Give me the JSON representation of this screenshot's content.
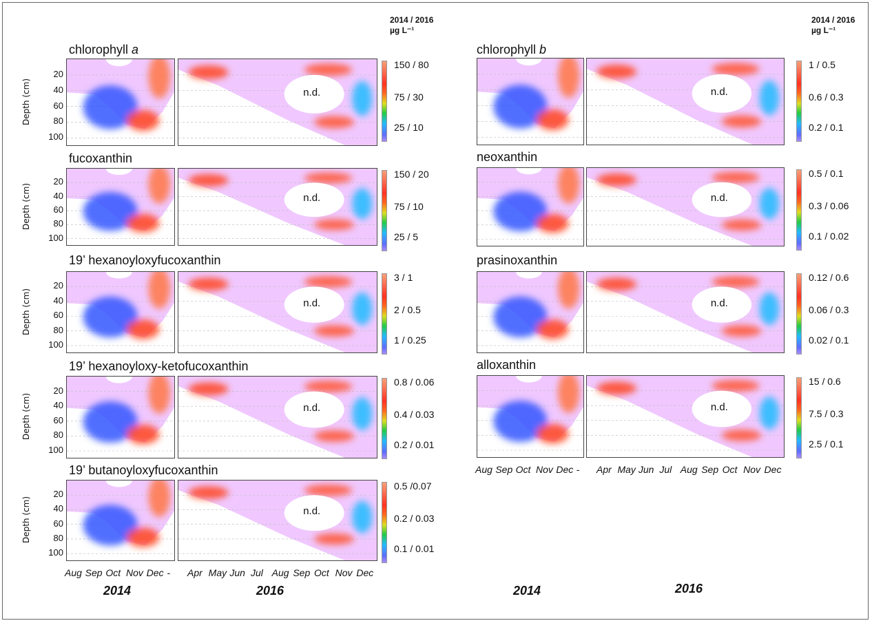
{
  "units": {
    "left": "2014 / 2016",
    "left_unit": "µg L⁻¹",
    "right": "2014 / 2016",
    "right_unit": "µg L⁻¹"
  },
  "ylabel": "Depth (cm)",
  "nd_label": "n.d.",
  "years": {
    "y2014": "2014",
    "y2016": "2016"
  },
  "xticks_2014": [
    "Aug",
    "Sep",
    "Oct",
    "Nov",
    "Dec",
    "-"
  ],
  "xticks_2016": [
    "Apr",
    "May",
    "Jun",
    "Jul",
    "Aug",
    "Sep",
    "Oct",
    "Nov",
    "Dec"
  ],
  "colors": {
    "low": "#a98cff",
    "mid": "#22cc44",
    "high": "#f7a07a",
    "background": "#f0c8ff"
  },
  "chart_data": [
    {
      "type": "heatmap",
      "title_main": "chlorophyll ",
      "title_italic": "a",
      "xlabel": "",
      "ylabel": "Depth (cm)",
      "yticks": [
        20,
        40,
        60,
        80,
        100
      ],
      "colorbar_ticks": [
        "150 / 80",
        "75 / 30",
        "25 / 10"
      ],
      "column": "left"
    },
    {
      "type": "heatmap",
      "title_main": "fucoxanthin",
      "title_italic": "",
      "xlabel": "",
      "ylabel": "Depth (cm)",
      "yticks": [
        20,
        40,
        60,
        80,
        100
      ],
      "colorbar_ticks": [
        "150 / 20",
        "75 / 10",
        "25 / 5"
      ],
      "column": "left"
    },
    {
      "type": "heatmap",
      "title_main": "19’ hexanoyloxyfucoxanthin",
      "title_italic": "",
      "xlabel": "",
      "ylabel": "Depth (cm)",
      "yticks": [
        20,
        40,
        60,
        80,
        100
      ],
      "colorbar_ticks": [
        "3 / 1",
        "2 / 0.5",
        "1 / 0.25"
      ],
      "column": "left"
    },
    {
      "type": "heatmap",
      "title_main": "19’ hexanoyloxy-ketofucoxanthin",
      "title_italic": "",
      "xlabel": "",
      "ylabel": "Depth (cm)",
      "yticks": [
        20,
        40,
        60,
        80,
        100
      ],
      "colorbar_ticks": [
        "0.8 / 0.06",
        "0.4 / 0.03",
        "0.2 / 0.01"
      ],
      "column": "left"
    },
    {
      "type": "heatmap",
      "title_main": "19’ butanoyloxyfucoxanthin",
      "title_italic": "",
      "xlabel": "",
      "ylabel": "Depth (cm)",
      "yticks": [
        20,
        40,
        60,
        80,
        100
      ],
      "colorbar_ticks": [
        "0.5 /0.07",
        "0.2 / 0.03",
        "0.1 / 0.01"
      ],
      "column": "left"
    },
    {
      "type": "heatmap",
      "title_main": "chlorophyll ",
      "title_italic": "b",
      "xlabel": "",
      "ylabel": "",
      "yticks": [],
      "colorbar_ticks": [
        "1 / 0.5",
        "0.6 / 0.3",
        "0.2 / 0.1"
      ],
      "column": "right"
    },
    {
      "type": "heatmap",
      "title_main": "neoxanthin",
      "title_italic": "",
      "xlabel": "",
      "ylabel": "",
      "yticks": [],
      "colorbar_ticks": [
        "0.5 / 0.1",
        "0.3 / 0.06",
        "0.1 / 0.02"
      ],
      "column": "right"
    },
    {
      "type": "heatmap",
      "title_main": "prasinoxanthin",
      "title_italic": "",
      "xlabel": "",
      "ylabel": "",
      "yticks": [],
      "colorbar_ticks": [
        "0.12 / 0.6",
        "0.06 / 0.3",
        "0.02 / 0.1"
      ],
      "column": "right"
    },
    {
      "type": "heatmap",
      "title_main": "alloxanthin",
      "title_italic": "",
      "xlabel": "",
      "ylabel": "",
      "yticks": [],
      "colorbar_ticks": [
        "15 / 0.6",
        "7.5 / 0.3",
        "2.5 / 0.1"
      ],
      "column": "right"
    }
  ]
}
